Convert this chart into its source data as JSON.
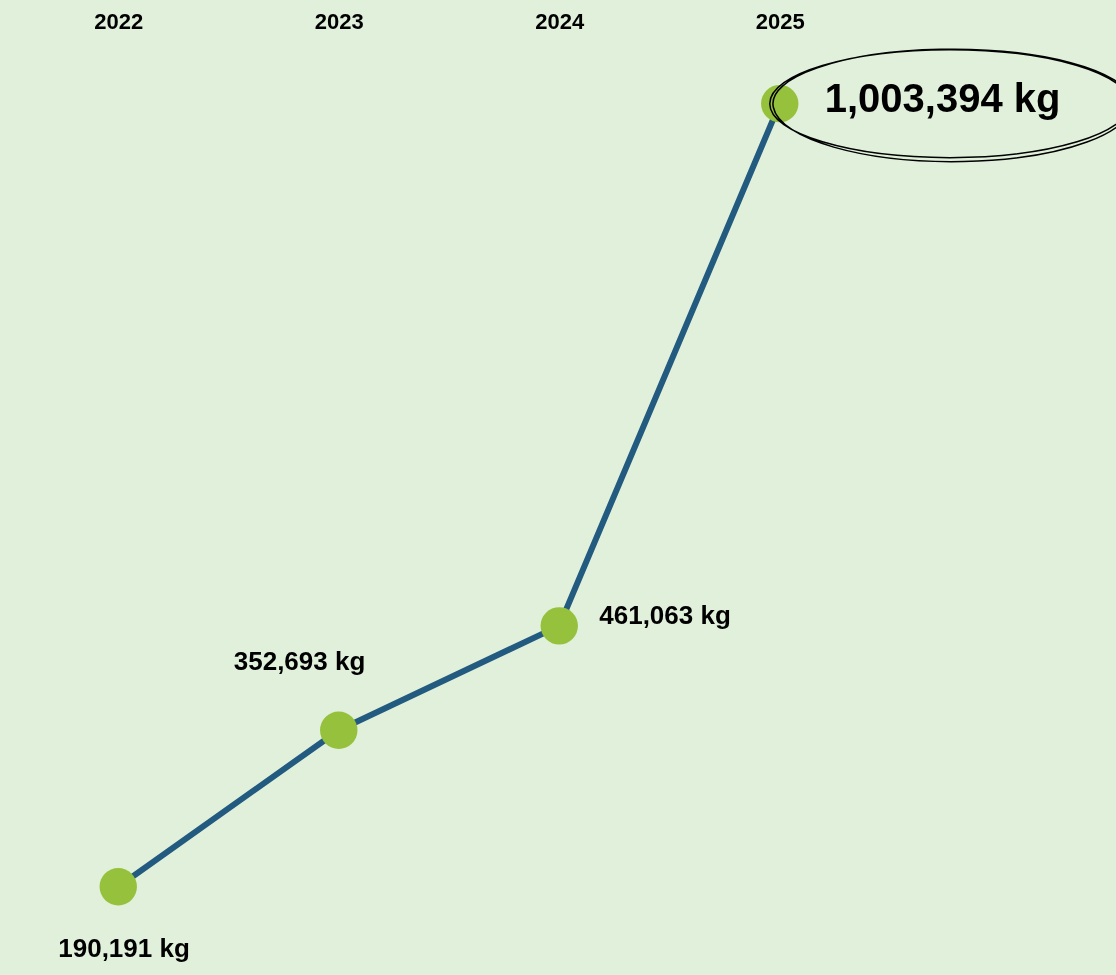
{
  "chart_data": {
    "type": "line",
    "categories": [
      "2022",
      "2023",
      "2024",
      "2025"
    ],
    "series": [
      {
        "color": "#225a80",
        "colors": [
          "#96c13c",
          "#96c13c",
          "#96c13c",
          "#96c13c"
        ],
        "values": [
          190191,
          352693,
          461063,
          1003394
        ],
        "value_labels": [
          "190,191 kg",
          "352,693 kg",
          "461,063 kg",
          "1,003,394 kg"
        ]
      }
    ],
    "marker": "circle",
    "grid": false
  }
}
